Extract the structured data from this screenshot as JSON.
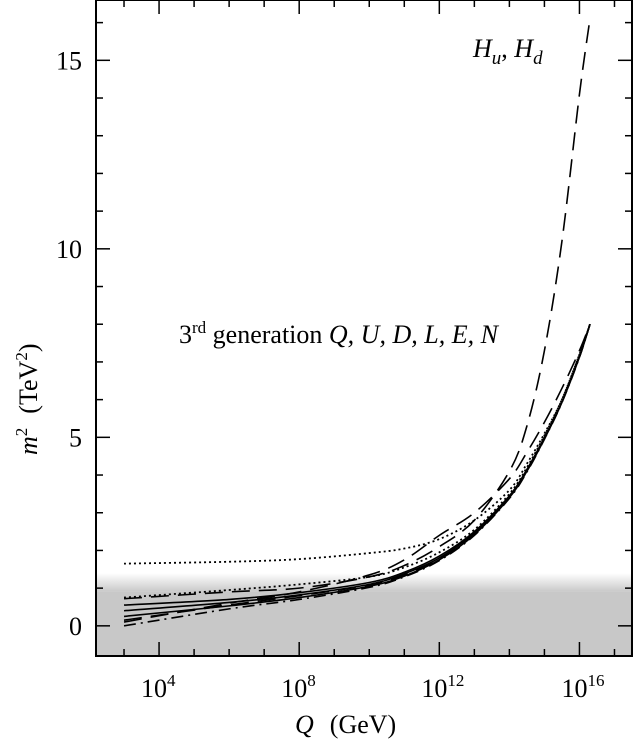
{
  "chart_data": {
    "type": "line",
    "xlabel": {
      "var": "Q",
      "unit": "(GeV)"
    },
    "ylabel": {
      "var": "m",
      "sup": "2",
      "unit_open": "(TeV",
      "unit_sup": "2",
      "unit_close": ")"
    },
    "x_scale": "log10",
    "xlim_log10": [
      2.2,
      17.5
    ],
    "ylim": [
      -0.8,
      16.6
    ],
    "x_ticks": [
      {
        "exp": 4,
        "base": "10",
        "sup": "4"
      },
      {
        "exp": 8,
        "base": "10",
        "sup": "8"
      },
      {
        "exp": 12,
        "base": "10",
        "sup": "12"
      },
      {
        "exp": 16,
        "base": "10",
        "sup": "16"
      }
    ],
    "x_minor_ticks_log10": [
      3,
      5,
      6,
      7,
      9,
      10,
      11,
      13,
      14,
      15,
      17
    ],
    "y_ticks": [
      {
        "value": 0,
        "label": "0"
      },
      {
        "value": 5,
        "label": "5"
      },
      {
        "value": 10,
        "label": "10"
      },
      {
        "value": 15,
        "label": "15"
      }
    ],
    "y_minor_step": 1,
    "shaded_band": {
      "ymin": -0.8,
      "ymax_solid": 0.9,
      "ymax_fade": 1.4,
      "color": "#c8c8c8"
    },
    "annotations": {
      "higgs": {
        "parts": [
          "H",
          "u",
          ", ",
          "H",
          "d"
        ]
      },
      "third_gen": {
        "prefix": "3",
        "sup": "rd",
        "middle": " generation ",
        "fields": "Q, U, D, L, E, N"
      }
    },
    "series": [
      {
        "style": "longdash",
        "x_log10": [
          3,
          6,
          8,
          10,
          11,
          12,
          13,
          14,
          14.5,
          15,
          15.5,
          16,
          16.3
        ],
        "y": [
          0.72,
          0.9,
          1.0,
          1.3,
          1.6,
          2.1,
          2.8,
          4.1,
          5.3,
          7.3,
          10.2,
          14.1,
          16.1
        ]
      },
      {
        "style": "longdash",
        "x_log10": [
          3,
          6,
          8,
          10,
          11,
          12,
          13,
          14,
          14.5,
          15,
          15.5,
          16,
          16.3
        ],
        "y": [
          0.1,
          0.6,
          0.9,
          1.35,
          1.75,
          2.4,
          3.0,
          3.9,
          4.6,
          5.4,
          6.3,
          7.3,
          8.0
        ]
      },
      {
        "style": "dotted",
        "x_log10": [
          3,
          6,
          8,
          10,
          11,
          12,
          13,
          14,
          14.5,
          15,
          15.5,
          16,
          16.3
        ],
        "y": [
          1.65,
          1.7,
          1.77,
          1.93,
          2.05,
          2.3,
          2.8,
          3.6,
          4.3,
          5.1,
          6.0,
          7.2,
          8.0
        ]
      },
      {
        "style": "dotted",
        "x_log10": [
          3,
          6,
          8,
          10,
          11,
          12,
          13,
          14,
          14.5,
          15,
          15.5,
          16,
          16.3
        ],
        "y": [
          0.75,
          0.95,
          1.1,
          1.3,
          1.55,
          1.95,
          2.55,
          3.5,
          4.2,
          5.05,
          6.0,
          7.2,
          8.0
        ]
      },
      {
        "style": "solid",
        "x_log10": [
          3,
          6,
          8,
          10,
          11,
          12,
          13,
          14,
          14.5,
          15,
          15.5,
          16,
          16.3
        ],
        "y": [
          0.55,
          0.7,
          0.88,
          1.15,
          1.42,
          1.85,
          2.5,
          3.45,
          4.15,
          5.0,
          5.95,
          7.15,
          8.0
        ]
      },
      {
        "style": "solid",
        "x_log10": [
          3,
          6,
          8,
          10,
          11,
          12,
          13,
          14,
          14.5,
          15,
          15.5,
          16,
          16.3
        ],
        "y": [
          0.4,
          0.62,
          0.82,
          1.1,
          1.38,
          1.8,
          2.47,
          3.42,
          4.12,
          4.98,
          5.95,
          7.15,
          8.0
        ]
      },
      {
        "style": "solid",
        "x_log10": [
          3,
          6,
          8,
          10,
          11,
          12,
          13,
          14,
          14.5,
          15,
          15.5,
          16,
          16.3
        ],
        "y": [
          0.25,
          0.53,
          0.75,
          1.05,
          1.32,
          1.75,
          2.42,
          3.4,
          4.1,
          4.96,
          5.93,
          7.13,
          8.0
        ]
      },
      {
        "style": "dashdot",
        "x_log10": [
          3,
          6,
          8,
          10,
          11,
          12,
          13,
          14,
          14.5,
          15,
          15.5,
          16,
          16.3
        ],
        "y": [
          0.0,
          0.45,
          0.7,
          1.02,
          1.3,
          1.73,
          2.4,
          3.38,
          4.08,
          4.95,
          5.92,
          7.12,
          8.0
        ]
      },
      {
        "style": "longdash",
        "x_log10": [
          3,
          6,
          8,
          10,
          11,
          12,
          13,
          14,
          14.5,
          15,
          15.5,
          16,
          16.3
        ],
        "y": [
          0.15,
          0.55,
          0.8,
          1.08,
          1.35,
          1.78,
          2.45,
          3.42,
          4.12,
          4.97,
          5.94,
          7.14,
          8.0
        ]
      }
    ]
  }
}
